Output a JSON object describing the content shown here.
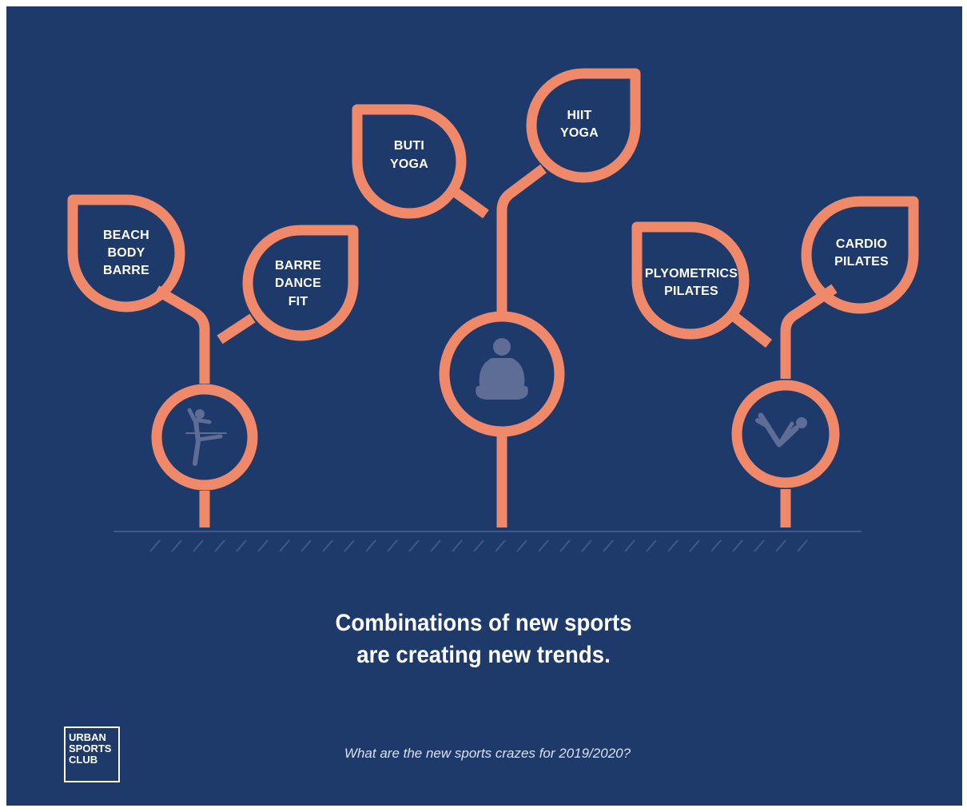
{
  "colors": {
    "background": "#1d3a6b",
    "accent": "#f0896a",
    "icon": "#5d6d95",
    "text": "#ffffff"
  },
  "trees": [
    {
      "icon": "ballet-dancer-icon",
      "leaves": [
        {
          "lines": [
            "BEACH",
            "BODY",
            "BARRE"
          ]
        },
        {
          "lines": [
            "BARRE",
            "DANCE",
            "FIT"
          ]
        }
      ]
    },
    {
      "icon": "meditating-person-icon",
      "leaves": [
        {
          "lines": [
            "BUTI",
            "YOGA"
          ]
        },
        {
          "lines": [
            "HIIT",
            "YOGA"
          ]
        }
      ]
    },
    {
      "icon": "pilates-pose-icon",
      "leaves": [
        {
          "lines": [
            "PLYOMETRICS",
            "PILATES"
          ]
        },
        {
          "lines": [
            "CARDIO",
            "PILATES"
          ]
        }
      ]
    }
  ],
  "headline": {
    "line1": "Combinations of new sports",
    "line2": "are creating new trends."
  },
  "subtitle": "What are the new sports crazes for 2019/2020?",
  "logo": {
    "line1": "URBAN",
    "line2": "SPORTS",
    "line3": "CLUB"
  }
}
